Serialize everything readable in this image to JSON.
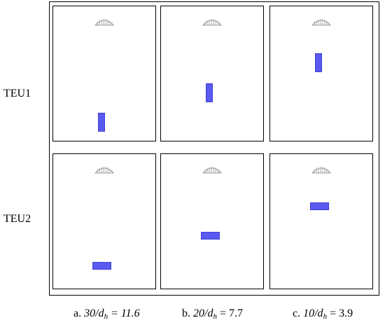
{
  "rows": [
    {
      "label": "TEU1",
      "orientation": "vertical"
    },
    {
      "label": "TEU2",
      "orientation": "horizontal"
    }
  ],
  "columns": [
    {
      "prefix": "a.",
      "ratio_numerator": "30/d",
      "subscript": "h",
      "value_text": "= 11.6",
      "value_italic": true
    },
    {
      "prefix": "b.",
      "ratio_numerator": "20/d",
      "subscript": "h",
      "value_text": "= 7.7",
      "value_italic": false
    },
    {
      "prefix": "c.",
      "ratio_numerator": "10/d",
      "subscript": "h",
      "value_text": "= 3.9",
      "value_italic": false
    }
  ],
  "colors": {
    "block": "#5a5af0",
    "block_border": "#3e3ed8",
    "dome": "#9a9a9a",
    "frame": "#000000"
  }
}
